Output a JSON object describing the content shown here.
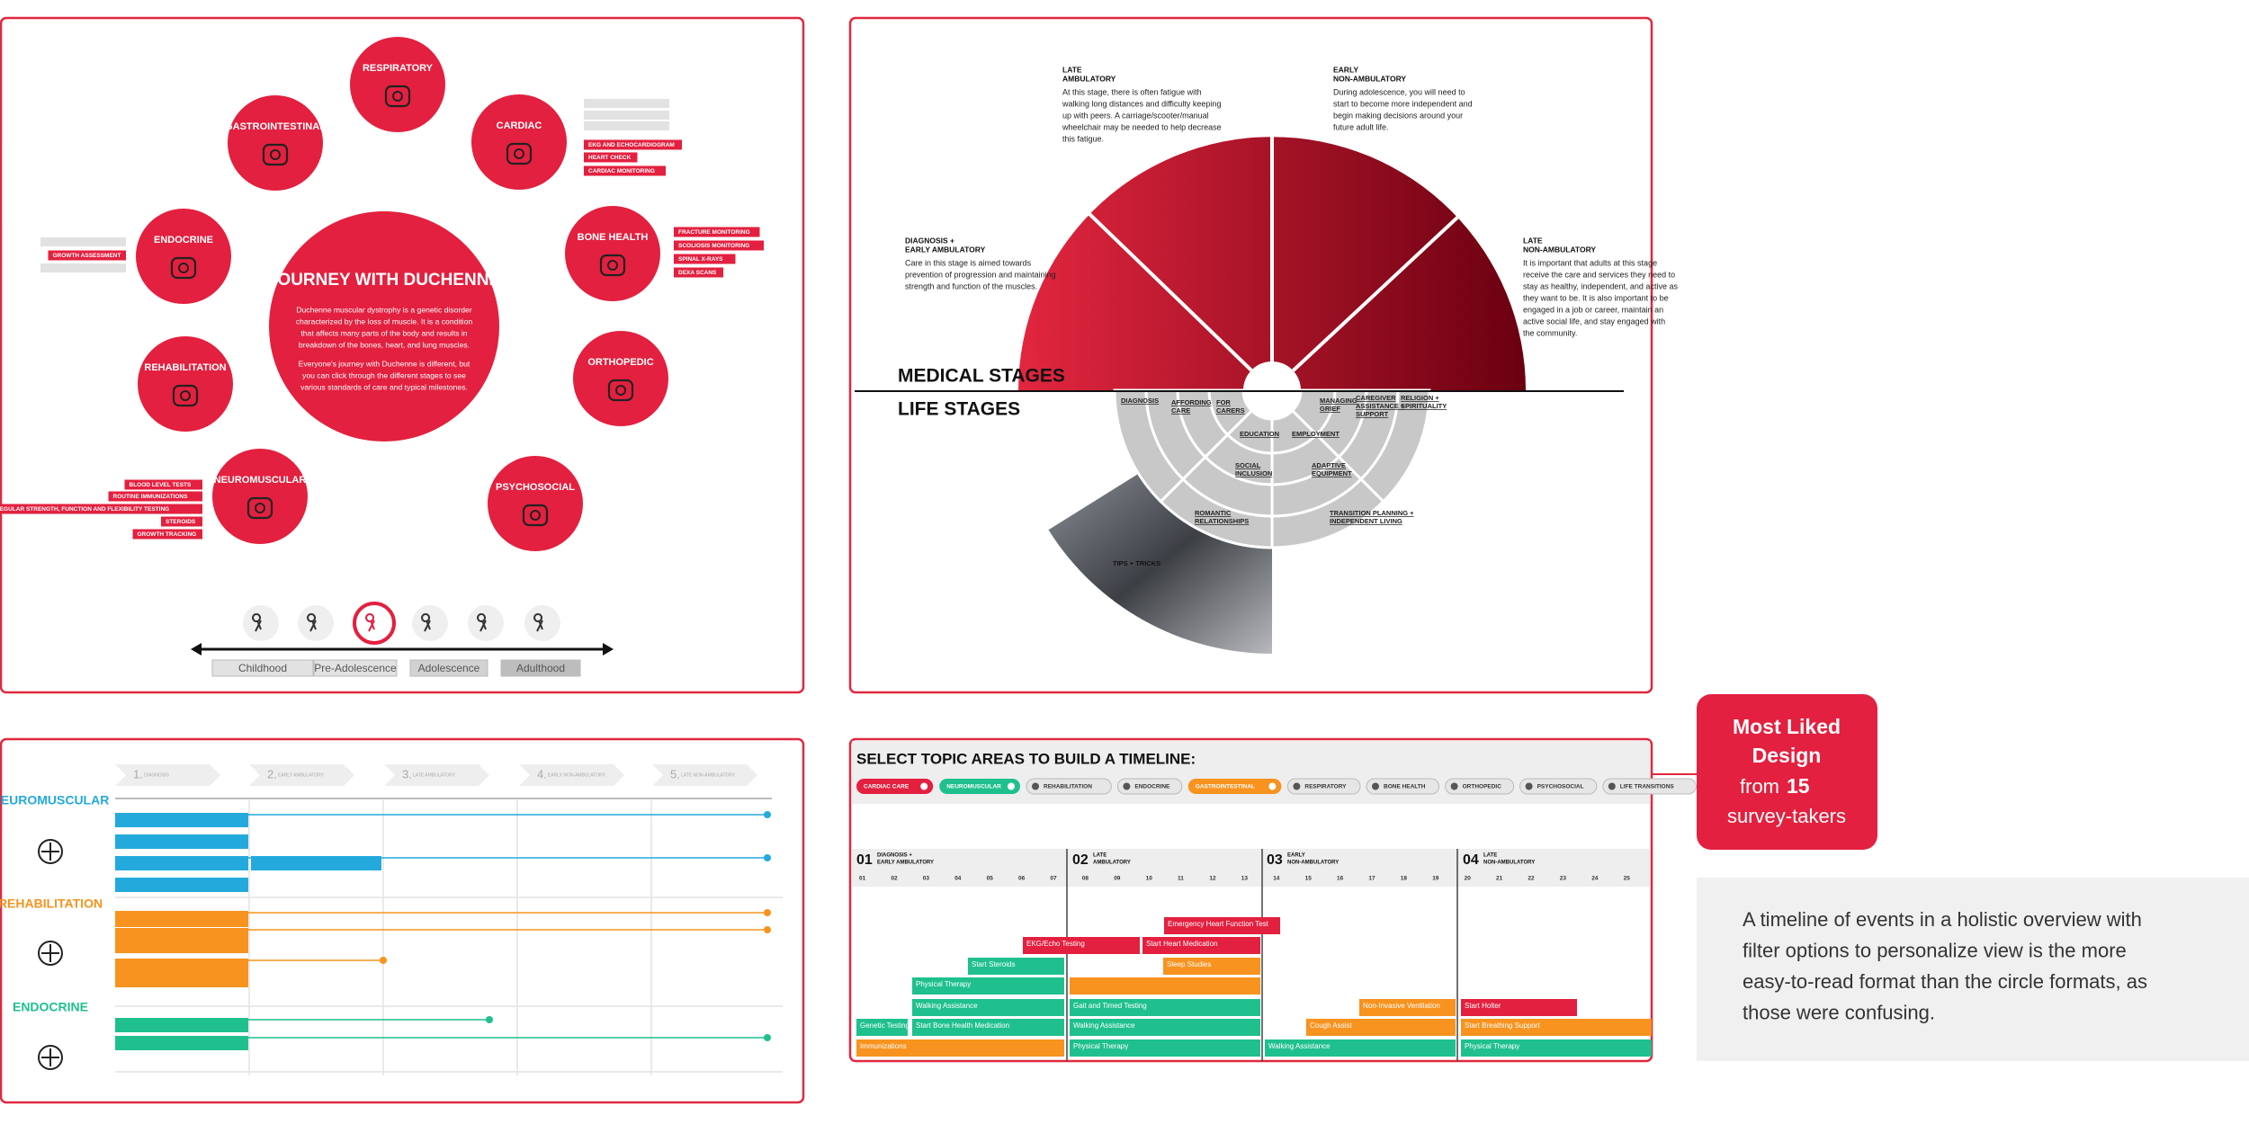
{
  "circle_design": {
    "title": "JOURNEY WITH DUCHENNE",
    "paragraphs": [
      [
        "Duchenne muscular dystrophy is a genetic disorder",
        "characterized by the loss of muscle. It is a condition",
        "that affects many parts of the body and results in",
        "breakdown of the bones, heart, and lung muscles."
      ],
      [
        "Everyone's journey with Duchenne is different, but",
        "you can click through the different stages to see",
        "various standards of care and typical milestones."
      ]
    ],
    "topics": [
      {
        "label": "RESPIRATORY"
      },
      {
        "label": "GASTROINTESTINAL"
      },
      {
        "label": "CARDIAC",
        "tags": [
          "EKG AND ECHOCARDIOGRAM",
          "HEART CHECK",
          "CARDIAC MONITORING"
        ]
      },
      {
        "label": "ENDOCRINE",
        "tags": [
          "GROWTH ASSESSMENT"
        ]
      },
      {
        "label": "BONE HEALTH",
        "tags": [
          "FRACTURE MONITORING",
          "SCOLIOSIS MONITORING",
          "SPINAL X-RAYS",
          "DEXA SCANS"
        ]
      },
      {
        "label": "REHABILITATION"
      },
      {
        "label": "ORTHOPEDIC"
      },
      {
        "label": "NEUROMUSCULAR",
        "tags": [
          "BLOOD LEVEL TESTS",
          "ROUTINE IMMUNIZATIONS",
          "REGULAR STRENGTH, FUNCTION AND FLEXIBILITY TESTING",
          "STEROIDS",
          "GROWTH TRACKING"
        ]
      },
      {
        "label": "PSYCHOSOCIAL"
      }
    ],
    "stages": [
      "Childhood",
      "Pre-Adolescence",
      "Adolescence",
      "Adulthood"
    ]
  },
  "arc_design": {
    "medical_label": "MEDICAL STAGES",
    "life_label": "LIFE STAGES",
    "medical_stages": [
      {
        "title": [
          "DIAGNOSIS +",
          "EARLY AMBULATORY"
        ],
        "text": [
          "Care in this stage is aimed towards",
          "prevention of progression and maintaining",
          "strength and function of the muscles."
        ]
      },
      {
        "title": [
          "LATE",
          "AMBULATORY"
        ],
        "text": [
          "At this stage, there is often fatigue with",
          "walking long distances and difficulty keeping",
          "up with peers. A carriage/scooter/manual",
          "wheelchair may be needed to help decrease",
          "this fatigue."
        ]
      },
      {
        "title": [
          "EARLY",
          "NON-AMBULATORY"
        ],
        "text": [
          "During adolescence, you will need to",
          "start to become more independent and",
          "begin making decisions around your",
          "future adult life."
        ]
      },
      {
        "title": [
          "LATE",
          "NON-AMBULATORY"
        ],
        "text": [
          "It is important that adults at this stage",
          "receive the care and services they need to",
          "stay as healthy, independent, and active as",
          "they want to be. It is also important to be",
          "engaged in a job or career, maintain an",
          "active social life, and stay engaged with",
          "the community."
        ]
      }
    ],
    "life_stages": [
      [
        "DIAGNOSIS"
      ],
      [
        "AFFORDING",
        "CARE"
      ],
      [
        "FOR",
        "CARERS"
      ],
      [
        "EDUCATION"
      ],
      [
        "EMPLOYMENT"
      ],
      [
        "MANAGING",
        "GRIEF"
      ],
      [
        "CAREGIVER",
        "ASSISTANCE +",
        "SUPPORT"
      ],
      [
        "RELIGION +",
        "SPIRITUALITY"
      ],
      [
        "SOCIAL",
        "INCLUSION"
      ],
      [
        "ADAPTIVE",
        "EQUIPMENT"
      ],
      [
        "ROMANTIC",
        "RELATIONSHIPS"
      ],
      [
        "TRANSITION PLANNING +",
        "INDEPENDENT LIVING"
      ]
    ],
    "photo_label": "TIPS + TRICKS"
  },
  "list_design": {
    "stages": [
      {
        "number": "1.",
        "label": "DIAGNOSIS"
      },
      {
        "number": "2.",
        "label": "EARLY AMBULATORY"
      },
      {
        "number": "3.",
        "label": "LATE AMBULATORY"
      },
      {
        "number": "4.",
        "label": "EARLY NON-AMBULATORY"
      },
      {
        "number": "5.",
        "label": "LATE NON-AMBULATORY"
      }
    ],
    "groups": [
      "NEUROMUSCULAR",
      "REHABILITATION",
      "ENDOCRINE"
    ]
  },
  "timeline_design": {
    "title": "SELECT TOPIC AREAS TO BUILD A TIMELINE:",
    "filters": [
      {
        "label": "CARDIAC CARE",
        "selected": "red"
      },
      {
        "label": "NEUROMUSCULAR",
        "selected": "green"
      },
      {
        "label": "REHABILITATION"
      },
      {
        "label": "ENDOCRINE"
      },
      {
        "label": "GASTROINTESTINAL",
        "selected": "orange"
      },
      {
        "label": "RESPIRATORY"
      },
      {
        "label": "BONE HEALTH"
      },
      {
        "label": "ORTHOPEDIC"
      },
      {
        "label": "PSYCHOSOCIAL"
      },
      {
        "label": "LIFE TRANSITIONS"
      }
    ],
    "stages": [
      {
        "number": "01",
        "label": [
          "DIAGNOSIS +",
          "EARLY AMBULATORY"
        ]
      },
      {
        "number": "02",
        "label": [
          "LATE",
          "AMBULATORY"
        ]
      },
      {
        "number": "03",
        "label": [
          "EARLY",
          "NON-AMBULATORY"
        ]
      },
      {
        "number": "04",
        "label": [
          "LATE",
          "NON-AMBULATORY"
        ]
      }
    ],
    "ages": [
      "01",
      "02",
      "03",
      "04",
      "05",
      "06",
      "07",
      "08",
      "09",
      "10",
      "11",
      "12",
      "13",
      "14",
      "15",
      "16",
      "17",
      "18",
      "19",
      "20",
      "21",
      "22",
      "23",
      "24",
      "25"
    ],
    "events": [
      {
        "label": "Emergency Heart Function Test",
        "color": "red"
      },
      {
        "label": "EKG/Echo Testing",
        "color": "red"
      },
      {
        "label": "Start Heart Medication",
        "color": "red"
      },
      {
        "label": "Start Steroids",
        "color": "green"
      },
      {
        "label": "Sleep Studies",
        "color": "orange"
      },
      {
        "label": "Physical Therapy",
        "color": "green"
      },
      {
        "label": "Walking Assistance",
        "color": "green"
      },
      {
        "label": "Gait and Timed Testing",
        "color": "green"
      },
      {
        "label": "Non-Invasive Ventilation",
        "color": "orange"
      },
      {
        "label": "Start Holter",
        "color": "red"
      },
      {
        "label": "Genetic Testing",
        "color": "green"
      },
      {
        "label": "Start Bone Health Medication",
        "color": "green"
      },
      {
        "label": "Walking Assistance",
        "color": "green"
      },
      {
        "label": "Cough Assist",
        "color": "orange"
      },
      {
        "label": "Start Breathing Support",
        "color": "orange"
      },
      {
        "label": "Immunizations",
        "color": "orange"
      },
      {
        "label": "Physical Therapy",
        "color": "green"
      },
      {
        "label": "Walking Assistance",
        "color": "green"
      },
      {
        "label": "Physical Therapy",
        "color": "green"
      }
    ]
  },
  "callout": {
    "lines": [
      "Most Liked",
      "Design"
    ],
    "from": "from",
    "count": "15",
    "suffix": "survey-takers"
  },
  "note": [
    "A timeline of events in a holistic overview with",
    "filter options to personalize view is the more",
    "easy-to-read format than the circle formats, as",
    "those were confusing."
  ]
}
